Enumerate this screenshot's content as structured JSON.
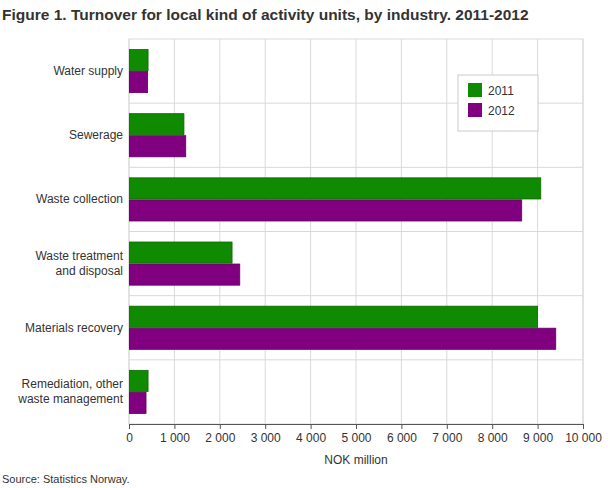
{
  "chart_data": {
    "type": "bar",
    "orientation": "horizontal",
    "title": "Figure 1. Turnover for local kind of activity units, by industry. 2011-2012",
    "x_label": "NOK million",
    "source": "Source: Statistics Norway.",
    "categories": [
      "Water supply",
      "Sewerage",
      "Waste collection",
      "Waste treatment\nand disposal",
      "Materials recovery",
      "Remediation, other\nwaste management"
    ],
    "series": [
      {
        "name": "2011",
        "color": "#108a00",
        "values": [
          420,
          1210,
          9070,
          2270,
          9000,
          420
        ]
      },
      {
        "name": "2012",
        "color": "#800080",
        "values": [
          410,
          1250,
          8650,
          2440,
          9400,
          375
        ]
      }
    ],
    "xlim": [
      0,
      10000
    ],
    "xticks": [
      0,
      {
        "value": 1000,
        "label": "1 000"
      },
      {
        "value": 2000,
        "label": "2 000"
      },
      {
        "value": 3000,
        "label": "3 000"
      },
      {
        "value": 4000,
        "label": "4 000"
      },
      {
        "value": 5000,
        "label": "5 000"
      },
      {
        "value": 6000,
        "label": "6 000"
      },
      {
        "value": 7000,
        "label": "7 000"
      },
      {
        "value": 8000,
        "label": "8 000"
      },
      {
        "value": 9000,
        "label": "9 000"
      },
      {
        "value": 10000,
        "label": "10 000"
      }
    ],
    "grid": true,
    "legend": "top-right"
  }
}
